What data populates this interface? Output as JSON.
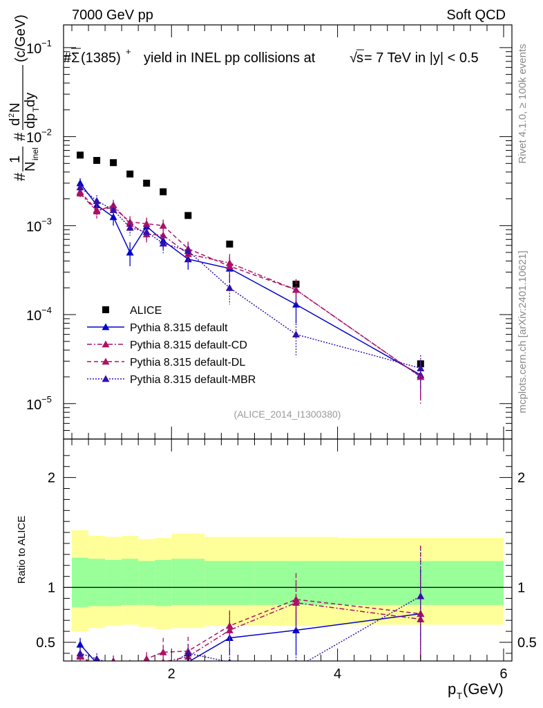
{
  "header": {
    "left": "7000 GeV pp",
    "right": "Soft QCD"
  },
  "side_labels": {
    "rivet": "Rivet 4.1.0, ≥ 100k events",
    "mcplots": "mcplots.cern.ch [arXiv:2401.10621]"
  },
  "colors": {
    "alice": "#000000",
    "default": "#0000cc",
    "cd": "#aa1166",
    "dl": "#aa1166",
    "mbr": "#3311aa",
    "band_inner": "#99ff99",
    "band_outer": "#ffff99"
  },
  "chart_data": [
    {
      "type": "scatter",
      "title": "#Σ̅(1385)⁺  yield in INEL pp collisions at√s =  7 TeV in |y| < 0.5",
      "title_parts": {
        "prefix": "#",
        "particle": "Σ",
        "mass": "(1385)",
        "charge": "+",
        "rest": "yield in INEL pp collisions at",
        "sqrt": "√",
        "s": "s",
        "energy": " =  7 TeV in |y| < 0.5"
      },
      "ylabel": "#1/N_inel # d²N/dp_T dy (c/GeV)",
      "ylabel_parts": {
        "hash1": "#",
        "one": "1",
        "n": "N",
        "inel": "inel",
        "hash2": "#",
        "d2n": "d",
        "sup2": "2",
        "n2": "N",
        "dp": "dp",
        "t": "T",
        "dy": " dy",
        "units": "(c/GeV)"
      },
      "yscale": "log",
      "ylim": [
        4e-06,
        0.18
      ],
      "xlim": [
        0.7,
        6.1
      ],
      "y_ticks": [
        {
          "value": 1e-05,
          "base": "10",
          "exp": "−5"
        },
        {
          "value": 0.0001,
          "base": "10",
          "exp": "−4"
        },
        {
          "value": 0.001,
          "base": "10",
          "exp": "−3"
        },
        {
          "value": 0.01,
          "base": "10",
          "exp": "−2"
        },
        {
          "value": 0.1,
          "base": "10",
          "exp": "−1"
        }
      ],
      "watermark": "(ALICE_2014_I1300380)",
      "series": [
        {
          "name": "ALICE",
          "key": "alice",
          "marker": "square",
          "line": "none",
          "x": [
            0.9,
            1.1,
            1.3,
            1.5,
            1.7,
            1.9,
            2.2,
            2.7,
            3.5,
            5.0
          ],
          "y": [
            0.0062,
            0.0054,
            0.0051,
            0.0038,
            0.003,
            0.0024,
            0.0013,
            0.00062,
            0.00022,
            2.8e-05
          ]
        },
        {
          "name": "Pythia 8.315 default",
          "key": "default",
          "marker": "triangle",
          "line": "solid",
          "x": [
            0.9,
            1.1,
            1.3,
            1.5,
            1.7,
            1.9,
            2.2,
            2.7,
            3.5,
            5.0
          ],
          "y": [
            0.003,
            0.0017,
            0.00125,
            0.0005,
            0.00098,
            0.00068,
            0.00042,
            0.00033,
            0.00013,
            2.1e-05
          ],
          "err": [
            0.0004,
            0.0003,
            0.00025,
            0.00015,
            0.0002,
            0.00014,
            0.0001,
            0.0001,
            5e-05,
            1e-05
          ]
        },
        {
          "name": "Pythia 8.315 default-CD",
          "key": "cd",
          "marker": "triangle",
          "line": "dashdot",
          "x": [
            0.9,
            1.1,
            1.3,
            1.5,
            1.7,
            1.9,
            2.2,
            2.7,
            3.5,
            5.0
          ],
          "y": [
            0.0023,
            0.00145,
            0.0017,
            0.00105,
            0.0008,
            0.00078,
            0.00048,
            0.00038,
            0.00019,
            2e-05
          ],
          "err": [
            0.0003,
            0.00025,
            0.00025,
            0.00018,
            0.00016,
            0.00015,
            0.0001,
            0.0001,
            6e-05,
            1e-05
          ]
        },
        {
          "name": "Pythia 8.315 default-DL",
          "key": "dl",
          "marker": "triangle",
          "line": "dashed",
          "x": [
            0.9,
            1.1,
            1.3,
            1.5,
            1.7,
            1.9,
            2.2,
            2.7,
            3.5,
            5.0
          ],
          "y": [
            0.0024,
            0.0015,
            0.0016,
            0.0011,
            0.00105,
            0.001,
            0.00055,
            0.00035,
            0.00019,
            2e-05
          ],
          "err": [
            0.0003,
            0.00025,
            0.00025,
            0.00018,
            0.00018,
            0.00017,
            0.00011,
            0.0001,
            6e-05,
            1e-05
          ]
        },
        {
          "name": "Pythia 8.315 default-MBR",
          "key": "mbr",
          "marker": "triangle",
          "line": "dotted",
          "x": [
            0.9,
            1.1,
            1.3,
            1.5,
            1.7,
            1.9,
            2.2,
            2.7,
            3.5,
            5.0
          ],
          "y": [
            0.0027,
            0.0019,
            0.0015,
            0.00095,
            0.00085,
            0.00063,
            0.00052,
            0.0002,
            6e-05,
            2.5e-05
          ],
          "err": [
            0.0003,
            0.0003,
            0.00025,
            0.00018,
            0.00016,
            0.00014,
            0.00011,
            7e-05,
            2.5e-05,
            1e-05
          ]
        }
      ]
    },
    {
      "type": "line",
      "ylabel": "Ratio to ALICE",
      "xlabel": "p_T (GeV)",
      "xlabel_parts": {
        "p": "p",
        "t": "T",
        "units": " (GeV)"
      },
      "xlim": [
        0.7,
        6.1
      ],
      "ylim": [
        0.33,
        2.35
      ],
      "x_ticks": [
        {
          "value": 2,
          "label": "2"
        },
        {
          "value": 4,
          "label": "4"
        },
        {
          "value": 6,
          "label": "6"
        }
      ],
      "y_ticks": [
        {
          "value": 0.5,
          "label": "0.5"
        },
        {
          "value": 1,
          "label": "1"
        },
        {
          "value": 2,
          "label": "2"
        }
      ],
      "bands": {
        "x_edges": [
          0.8,
          1.0,
          1.2,
          1.4,
          1.6,
          1.8,
          2.0,
          2.4,
          3.0,
          4.0,
          6.0
        ],
        "inner_lo": [
          0.82,
          0.83,
          0.83,
          0.84,
          0.84,
          0.83,
          0.84,
          0.84,
          0.84,
          0.84
        ],
        "inner_hi": [
          1.27,
          1.26,
          1.25,
          1.26,
          1.24,
          1.25,
          1.26,
          1.24,
          1.24,
          1.24
        ],
        "outer_lo": [
          0.6,
          0.63,
          0.65,
          0.66,
          0.64,
          0.62,
          0.63,
          0.65,
          0.65,
          0.66
        ],
        "outer_hi": [
          1.52,
          1.47,
          1.46,
          1.47,
          1.44,
          1.45,
          1.49,
          1.46,
          1.46,
          1.45
        ]
      },
      "series": [
        {
          "name": "Pythia 8.315 default",
          "key": "default",
          "line": "solid",
          "x": [
            0.9,
            1.1,
            1.3,
            1.5,
            1.7,
            1.9,
            2.2,
            2.7,
            3.5,
            5.0
          ],
          "y": [
            0.48,
            0.31,
            0.25,
            0.13,
            0.33,
            0.28,
            0.32,
            0.54,
            0.61,
            0.76
          ],
          "err": [
            0.06,
            0.05,
            0.05,
            0.04,
            0.06,
            0.05,
            0.06,
            0.16,
            0.23,
            0.4
          ]
        },
        {
          "name": "Pythia 8.315 default-CD",
          "key": "cd",
          "line": "dashdot",
          "x": [
            0.9,
            1.1,
            1.3,
            1.5,
            1.7,
            1.9,
            2.2,
            2.7,
            3.5,
            5.0
          ],
          "y": [
            0.37,
            0.27,
            0.33,
            0.28,
            0.27,
            0.32,
            0.37,
            0.61,
            0.86,
            0.71
          ],
          "err": [
            0.05,
            0.05,
            0.05,
            0.05,
            0.05,
            0.06,
            0.08,
            0.16,
            0.27,
            0.38
          ]
        },
        {
          "name": "Pythia 8.315 default-DL",
          "key": "dl",
          "line": "dashed",
          "x": [
            0.9,
            1.1,
            1.3,
            1.5,
            1.7,
            1.9,
            2.2,
            2.7,
            3.5,
            5.0
          ],
          "y": [
            0.38,
            0.28,
            0.31,
            0.29,
            0.35,
            0.41,
            0.42,
            0.65,
            0.89,
            0.76
          ],
          "err": [
            0.05,
            0.05,
            0.05,
            0.05,
            0.06,
            0.13,
            0.13,
            0.14,
            0.17,
            0.62
          ]
        },
        {
          "name": "Pythia 8.315 default-MBR",
          "key": "mbr",
          "line": "dotted",
          "x": [
            0.9,
            1.1,
            1.3,
            1.5,
            1.7,
            1.9,
            2.2,
            2.7,
            3.5,
            5.0
          ],
          "y": [
            0.4,
            0.35,
            0.3,
            0.25,
            0.28,
            0.26,
            0.4,
            0.32,
            0.27,
            0.92
          ],
          "err": [
            0.05,
            0.05,
            0.05,
            0.05,
            0.05,
            0.05,
            0.08,
            0.1,
            0.1,
            0.45
          ]
        }
      ]
    }
  ]
}
